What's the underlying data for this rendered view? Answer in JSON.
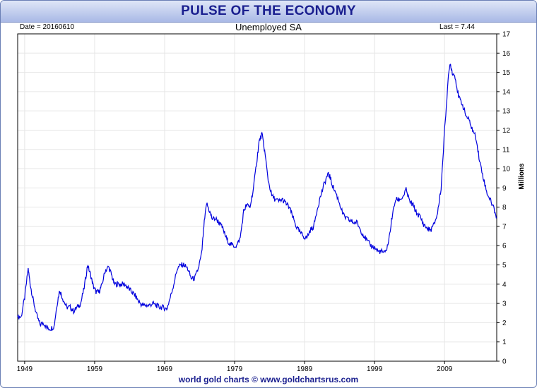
{
  "header": {
    "title": "PULSE OF THE ECONOMY",
    "date_label": "Date = 20160610",
    "last_label": "Last = 7.44"
  },
  "footer": {
    "credit": "world gold charts © www.goldchartsrus.com"
  },
  "colors": {
    "line": "#0000dd",
    "grid": "#e6e6e6",
    "title_text": "#1a1f8f"
  },
  "chart_data": {
    "type": "line",
    "title": "Unemployed SA",
    "ylabel": "Millions",
    "xlabel": "",
    "xlim": [
      1948.0,
      2016.45
    ],
    "ylim": [
      0,
      17
    ],
    "grid": true,
    "y_axis_side": "right",
    "y_ticks": [
      0,
      1,
      2,
      3,
      4,
      5,
      6,
      7,
      8,
      9,
      10,
      11,
      12,
      13,
      14,
      15,
      16,
      17
    ],
    "x_ticks": [
      1949,
      1959,
      1969,
      1979,
      1989,
      1999,
      2009
    ],
    "x_tick_labels": [
      "1949",
      "1959",
      "1969",
      "1979",
      "1989",
      "1999",
      "2009"
    ],
    "series": [
      {
        "x": [
          1948.0,
          1948.5,
          1949.0,
          1949.5,
          1949.8,
          1950.2,
          1950.7,
          1951.2,
          1951.7,
          1952.2,
          1952.7,
          1953.2,
          1953.6,
          1954.0,
          1954.5,
          1955.0,
          1955.5,
          1956.0,
          1956.5,
          1957.0,
          1957.5,
          1958.0,
          1958.4,
          1958.8,
          1959.2,
          1959.6,
          1960.0,
          1960.5,
          1961.0,
          1961.4,
          1961.8,
          1962.3,
          1962.8,
          1963.3,
          1963.8,
          1964.3,
          1964.8,
          1965.3,
          1965.8,
          1966.3,
          1966.8,
          1967.3,
          1967.8,
          1968.3,
          1968.8,
          1969.3,
          1969.8,
          1970.3,
          1970.8,
          1971.3,
          1971.8,
          1972.3,
          1972.8,
          1973.3,
          1973.8,
          1974.3,
          1974.6,
          1975.0,
          1975.4,
          1975.8,
          1976.3,
          1976.8,
          1977.3,
          1977.8,
          1978.3,
          1978.8,
          1979.3,
          1979.8,
          1980.3,
          1980.7,
          1981.2,
          1981.7,
          1982.2,
          1982.5,
          1982.9,
          1983.3,
          1983.8,
          1984.3,
          1984.8,
          1985.3,
          1985.8,
          1986.3,
          1986.8,
          1987.3,
          1987.8,
          1988.3,
          1988.8,
          1989.3,
          1989.8,
          1990.3,
          1990.8,
          1991.3,
          1991.8,
          1992.3,
          1992.6,
          1993.0,
          1993.5,
          1994.0,
          1994.5,
          1995.0,
          1995.5,
          1996.0,
          1996.5,
          1997.0,
          1997.5,
          1998.0,
          1998.5,
          1999.0,
          1999.5,
          2000.0,
          2000.5,
          2001.0,
          2001.5,
          2002.0,
          2002.5,
          2003.0,
          2003.5,
          2004.0,
          2004.5,
          2005.0,
          2005.5,
          2006.0,
          2006.5,
          2007.0,
          2007.5,
          2008.0,
          2008.5,
          2009.0,
          2009.5,
          2009.8,
          2010.1,
          2010.5,
          2011.0,
          2011.5,
          2012.0,
          2012.5,
          2013.0,
          2013.5,
          2014.0,
          2014.5,
          2015.0,
          2015.5,
          2016.0,
          2016.45
        ],
        "y": [
          2.3,
          2.3,
          3.3,
          4.8,
          4.0,
          3.2,
          2.4,
          1.9,
          2.0,
          1.7,
          1.7,
          1.8,
          2.9,
          3.7,
          3.2,
          2.8,
          2.8,
          2.6,
          2.8,
          3.0,
          3.8,
          5.0,
          4.5,
          3.9,
          3.6,
          3.6,
          3.9,
          4.7,
          4.9,
          4.5,
          4.0,
          4.0,
          4.0,
          4.0,
          3.8,
          3.6,
          3.4,
          3.1,
          2.9,
          2.9,
          2.9,
          3.0,
          2.9,
          2.8,
          2.8,
          2.7,
          3.3,
          4.0,
          4.8,
          5.0,
          5.0,
          4.8,
          4.3,
          4.3,
          4.8,
          5.6,
          7.0,
          8.2,
          7.8,
          7.4,
          7.4,
          7.2,
          6.9,
          6.4,
          6.1,
          6.0,
          6.0,
          6.4,
          7.8,
          8.1,
          8.0,
          9.0,
          10.5,
          11.4,
          11.8,
          10.9,
          9.4,
          8.6,
          8.4,
          8.3,
          8.4,
          8.2,
          8.0,
          7.5,
          7.0,
          6.7,
          6.5,
          6.4,
          6.8,
          7.0,
          7.9,
          8.6,
          9.2,
          9.7,
          9.6,
          9.1,
          8.7,
          8.2,
          7.6,
          7.4,
          7.3,
          7.2,
          7.2,
          6.8,
          6.5,
          6.2,
          6.0,
          5.9,
          5.7,
          5.7,
          5.6,
          6.2,
          7.5,
          8.4,
          8.4,
          8.5,
          8.9,
          8.3,
          8.1,
          7.7,
          7.5,
          7.1,
          6.9,
          6.8,
          7.1,
          7.7,
          9.0,
          12.0,
          14.6,
          15.5,
          15.0,
          14.8,
          13.7,
          13.4,
          12.8,
          12.5,
          12.0,
          11.6,
          10.4,
          9.6,
          8.8,
          8.4,
          8.0,
          7.44
        ]
      }
    ]
  }
}
